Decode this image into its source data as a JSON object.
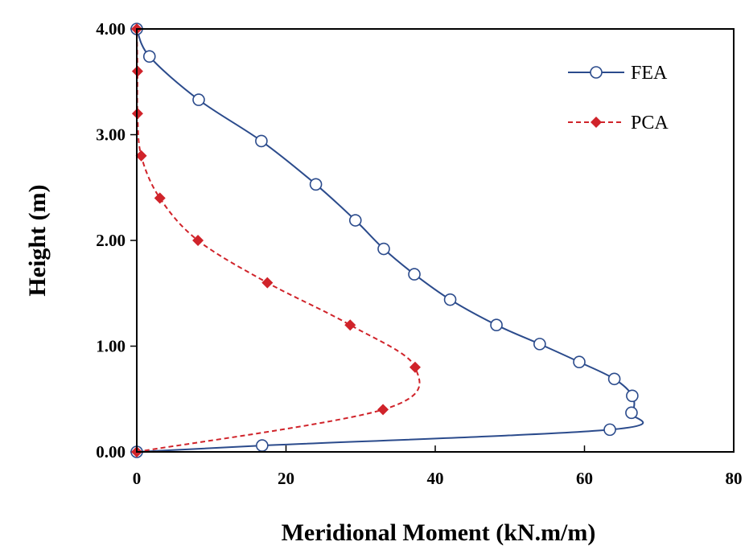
{
  "chart_data": {
    "type": "line",
    "xlabel": "Meridional Moment (kN.m/m)",
    "ylabel": "Height (m)",
    "xlim": [
      0,
      80
    ],
    "ylim": [
      0,
      4
    ],
    "x_ticks": [
      0,
      20,
      40,
      60,
      80
    ],
    "y_ticks": [
      0,
      1,
      2,
      3,
      4
    ],
    "x_tick_labels": [
      "0",
      "20",
      "40",
      "60",
      "80"
    ],
    "y_tick_labels": [
      "0.00",
      "1.00",
      "2.00",
      "3.00",
      "4.00"
    ],
    "grid": false,
    "legend_position": "top-right",
    "series": [
      {
        "name": "FEA",
        "color": "#2b4b8c",
        "line_style": "solid",
        "marker": "open-circle",
        "points": [
          {
            "x": 0.0,
            "y": 0.0
          },
          {
            "x": 16.8,
            "y": 0.06
          },
          {
            "x": 63.4,
            "y": 0.21
          },
          {
            "x": 66.3,
            "y": 0.37
          },
          {
            "x": 66.4,
            "y": 0.53
          },
          {
            "x": 64.0,
            "y": 0.69
          },
          {
            "x": 59.3,
            "y": 0.85
          },
          {
            "x": 54.0,
            "y": 1.02
          },
          {
            "x": 48.2,
            "y": 1.2
          },
          {
            "x": 42.0,
            "y": 1.44
          },
          {
            "x": 37.2,
            "y": 1.68
          },
          {
            "x": 33.1,
            "y": 1.92
          },
          {
            "x": 29.3,
            "y": 2.19
          },
          {
            "x": 24.0,
            "y": 2.53
          },
          {
            "x": 16.7,
            "y": 2.94
          },
          {
            "x": 8.3,
            "y": 3.33
          },
          {
            "x": 1.7,
            "y": 3.74
          },
          {
            "x": 0.0,
            "y": 4.0
          }
        ]
      },
      {
        "name": "PCA",
        "color": "#d0232a",
        "line_style": "dashed",
        "marker": "filled-diamond",
        "points": [
          {
            "x": 0.0,
            "y": 0.0
          },
          {
            "x": 33.0,
            "y": 0.4
          },
          {
            "x": 37.3,
            "y": 0.8
          },
          {
            "x": 28.6,
            "y": 1.2
          },
          {
            "x": 17.5,
            "y": 1.6
          },
          {
            "x": 8.2,
            "y": 2.0
          },
          {
            "x": 3.1,
            "y": 2.4
          },
          {
            "x": 0.6,
            "y": 2.8
          },
          {
            "x": 0.1,
            "y": 3.2
          },
          {
            "x": 0.1,
            "y": 3.6
          },
          {
            "x": 0.0,
            "y": 4.0
          }
        ]
      }
    ]
  }
}
